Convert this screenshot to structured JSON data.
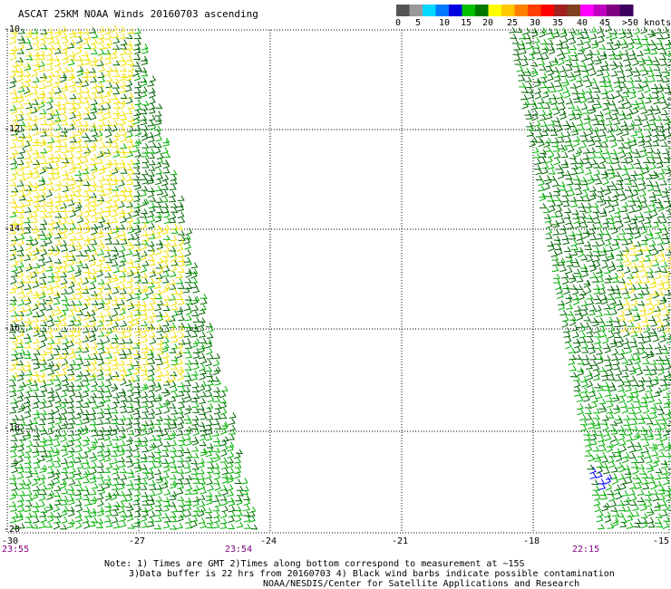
{
  "title": "ASCAT 25KM NOAA Winds 20160703 ascending",
  "color_scale": {
    "colors": [
      "#555555",
      "#999999",
      "#00d8ff",
      "#0078ff",
      "#0000e0",
      "#00c000",
      "#007800",
      "#ffff00",
      "#ffc800",
      "#ff8000",
      "#ff4000",
      "#ff0000",
      "#a02020",
      "#804020",
      "#ff00ff",
      "#c000c0",
      "#800080",
      "#400060"
    ],
    "labels": [
      "0",
      "5",
      "10",
      "15",
      "20",
      "25",
      "30",
      "35",
      "40",
      "45",
      ">50 knots"
    ]
  },
  "axes": {
    "lat_labels": [
      "-10",
      "-12",
      "-14",
      "-16",
      "-18",
      "-20"
    ],
    "lon_labels": [
      "-30",
      "-27",
      "-24",
      "-21",
      "-18",
      "-15"
    ]
  },
  "swath_times": [
    "23:55",
    "23:54",
    "22:15"
  ],
  "notes": [
    "Note: 1) Times are GMT 2)Times along bottom correspond to measurement at ~15S",
    "3)Data buffer is 22 hrs from 20160703 4) Black wind barbs indicate possible contamination",
    "NOAA/NESDIS/Center for Satellite Applications and Research"
  ],
  "wind_colors": {
    "yellow": "#f0e000",
    "dark_green": "#006400",
    "green": "#00b000",
    "blue": "#0000ff"
  }
}
